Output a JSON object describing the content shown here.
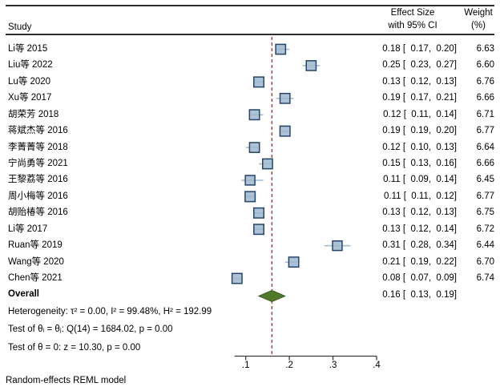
{
  "header": {
    "study_col": "Study",
    "effect_col": [
      "Effect Size",
      "with 95% CI"
    ],
    "weight_col": [
      "Weight",
      "(%)"
    ]
  },
  "stats": {
    "overall_label": "Overall",
    "heterogeneity": "Heterogeneity: τ² = 0.00, I² = 99.48%, H² = 192.99",
    "test_theta_eq": "Test of θᵢ = θⱼ: Q(14) = 1684.02, p = 0.00",
    "test_theta_zero": "Test of θ = 0: z = 10.30, p = 0.00"
  },
  "footer": {
    "model_note": "Random-effects REML model"
  },
  "colors": {
    "marker_fill": "#adc2d5",
    "marker_border": "#24456b",
    "ci_line": "#9db8cf",
    "reference_line": "#f8111d",
    "diamond_fill": "#4f7a29",
    "diamond_border": "#3c5a1e",
    "axis": "#3c3c3c"
  },
  "chart_data": {
    "type": "forest",
    "x_axis": {
      "ticks": [
        0.1,
        0.2,
        0.3,
        0.4
      ],
      "tick_labels": [
        ".1",
        ".2",
        ".3",
        ".4"
      ],
      "range": [
        0.075,
        0.4
      ],
      "grid": false
    },
    "reference_line": 0.16,
    "studies": [
      {
        "name": "Li等 2015",
        "effect": 0.18,
        "ci_low": 0.17,
        "ci_high": 0.2,
        "label": "0.18 [  0.17,  0.20]",
        "weight": 6.63,
        "weight_label": "6.63"
      },
      {
        "name": "Liu等 2022",
        "effect": 0.25,
        "ci_low": 0.23,
        "ci_high": 0.27,
        "label": "0.25 [  0.23,  0.27]",
        "weight": 6.6,
        "weight_label": "6.60"
      },
      {
        "name": "Lu等 2020",
        "effect": 0.13,
        "ci_low": 0.12,
        "ci_high": 0.13,
        "label": "0.13 [  0.12,  0.13]",
        "weight": 6.76,
        "weight_label": "6.76"
      },
      {
        "name": "Xu等 2017",
        "effect": 0.19,
        "ci_low": 0.17,
        "ci_high": 0.21,
        "label": "0.19 [  0.17,  0.21]",
        "weight": 6.66,
        "weight_label": "6.66"
      },
      {
        "name": "胡荣芳 2018",
        "effect": 0.12,
        "ci_low": 0.11,
        "ci_high": 0.14,
        "label": "0.12 [  0.11,  0.14]",
        "weight": 6.71,
        "weight_label": "6.71"
      },
      {
        "name": "蒋斌杰等 2016",
        "effect": 0.19,
        "ci_low": 0.19,
        "ci_high": 0.2,
        "label": "0.19 [  0.19,  0.20]",
        "weight": 6.77,
        "weight_label": "6.77"
      },
      {
        "name": "李菁菁等 2018",
        "effect": 0.12,
        "ci_low": 0.1,
        "ci_high": 0.13,
        "label": "0.12 [  0.10,  0.13]",
        "weight": 6.64,
        "weight_label": "6.64"
      },
      {
        "name": "宁尚勇等 2021",
        "effect": 0.15,
        "ci_low": 0.13,
        "ci_high": 0.16,
        "label": "0.15 [  0.13,  0.16]",
        "weight": 6.66,
        "weight_label": "6.66"
      },
      {
        "name": "王黎荔等 2016",
        "effect": 0.11,
        "ci_low": 0.09,
        "ci_high": 0.14,
        "label": "0.11 [  0.09,  0.14]",
        "weight": 6.45,
        "weight_label": "6.45"
      },
      {
        "name": "周小梅等 2016",
        "effect": 0.11,
        "ci_low": 0.11,
        "ci_high": 0.12,
        "label": "0.11 [  0.11,  0.12]",
        "weight": 6.77,
        "weight_label": "6.77"
      },
      {
        "name": "胡贻椿等 2016",
        "effect": 0.13,
        "ci_low": 0.12,
        "ci_high": 0.13,
        "label": "0.13 [  0.12,  0.13]",
        "weight": 6.75,
        "weight_label": "6.75"
      },
      {
        "name": "Li等 2017",
        "effect": 0.13,
        "ci_low": 0.12,
        "ci_high": 0.14,
        "label": "0.13 [  0.12,  0.14]",
        "weight": 6.72,
        "weight_label": "6.72"
      },
      {
        "name": "Ruan等 2019",
        "effect": 0.31,
        "ci_low": 0.28,
        "ci_high": 0.34,
        "label": "0.31 [  0.28,  0.34]",
        "weight": 6.44,
        "weight_label": "6.44"
      },
      {
        "name": "Wang等 2020",
        "effect": 0.21,
        "ci_low": 0.19,
        "ci_high": 0.22,
        "label": "0.21 [  0.19,  0.22]",
        "weight": 6.7,
        "weight_label": "6.70"
      },
      {
        "name": "Chen等 2021",
        "effect": 0.08,
        "ci_low": 0.07,
        "ci_high": 0.09,
        "label": "0.08 [  0.07,  0.09]",
        "weight": 6.74,
        "weight_label": "6.74"
      }
    ],
    "overall": {
      "effect": 0.16,
      "ci_low": 0.13,
      "ci_high": 0.19,
      "label": "0.16 [  0.13,  0.19]"
    }
  }
}
